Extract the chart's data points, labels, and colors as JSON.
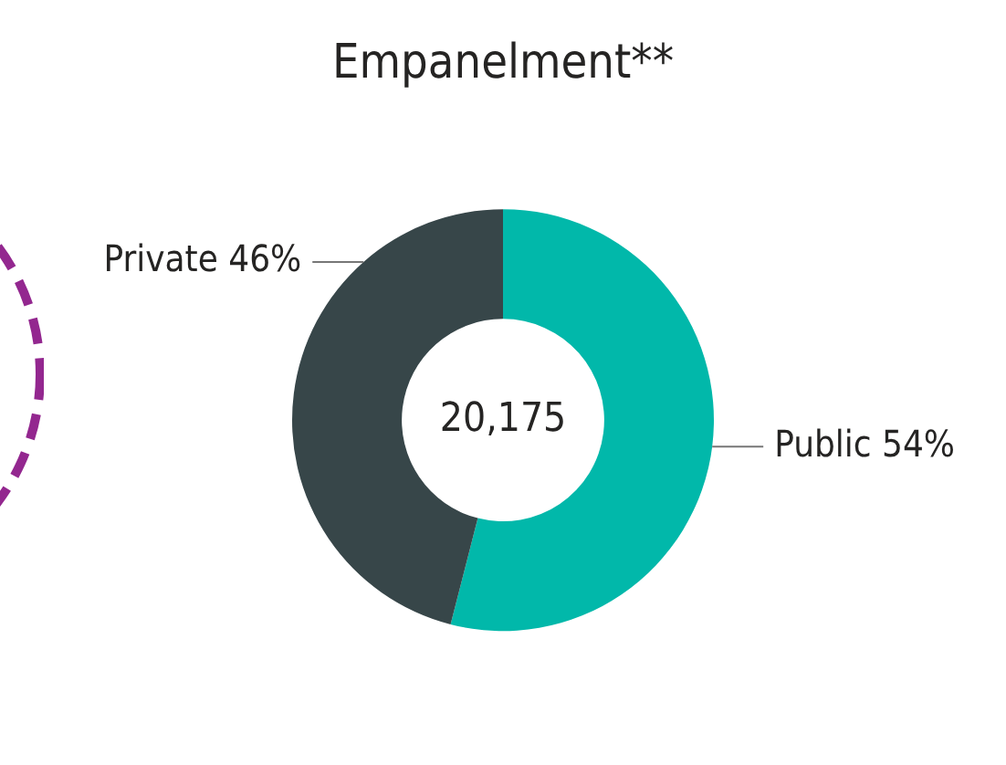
{
  "chart_data": {
    "type": "donut",
    "title": "Empanelment**",
    "categories": [
      "Public",
      "Private"
    ],
    "values": [
      54,
      46
    ],
    "value_labels": [
      "54%",
      "46%"
    ],
    "colors": [
      "#01b8aa",
      "#374649"
    ],
    "annotations": [
      "20,175"
    ],
    "legend": false
  }
}
